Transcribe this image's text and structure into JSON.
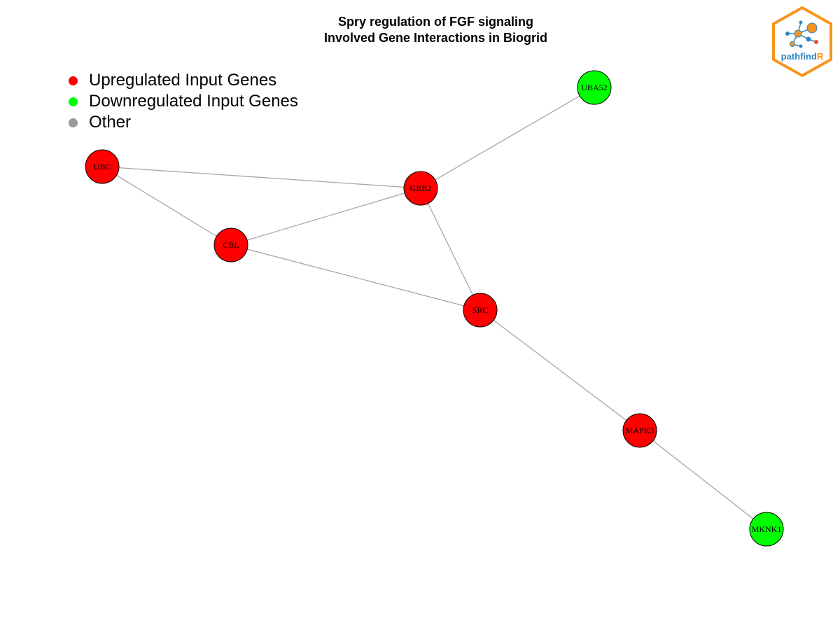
{
  "title": {
    "line1": "Spry regulation of FGF signaling",
    "line2": "Involved Gene Interactions in Biogrid"
  },
  "legend": [
    {
      "label": "Upregulated Input Genes",
      "color": "#ff0000"
    },
    {
      "label": "Downregulated Input Genes",
      "color": "#00ff00"
    },
    {
      "label": "Other",
      "color": "#999999"
    }
  ],
  "nodes": [
    {
      "id": "UBA52",
      "label": "UBA52",
      "status": "down"
    },
    {
      "id": "UBC",
      "label": "UBC",
      "status": "up"
    },
    {
      "id": "GRB2",
      "label": "GRB2",
      "status": "up"
    },
    {
      "id": "CBL",
      "label": "CBL",
      "status": "up"
    },
    {
      "id": "SRC",
      "label": "SRC",
      "status": "up"
    },
    {
      "id": "MAPK3",
      "label": "MAPK3",
      "status": "up"
    },
    {
      "id": "MKNK1",
      "label": "MKNK1",
      "status": "down"
    }
  ],
  "edges": [
    [
      "UBA52",
      "GRB2"
    ],
    [
      "UBC",
      "GRB2"
    ],
    [
      "UBC",
      "CBL"
    ],
    [
      "CBL",
      "GRB2"
    ],
    [
      "CBL",
      "SRC"
    ],
    [
      "GRB2",
      "SRC"
    ],
    [
      "SRC",
      "MAPK3"
    ],
    [
      "MAPK3",
      "MKNK1"
    ]
  ],
  "colors": {
    "up": "#ff0000",
    "down": "#00ff00",
    "other": "#999999",
    "edge": "#a6a6a6",
    "logo_orange": "#f7941d",
    "logo_blue": "#2e86c1"
  },
  "logo": {
    "text_main": "pathfind",
    "text_accent": "R"
  }
}
